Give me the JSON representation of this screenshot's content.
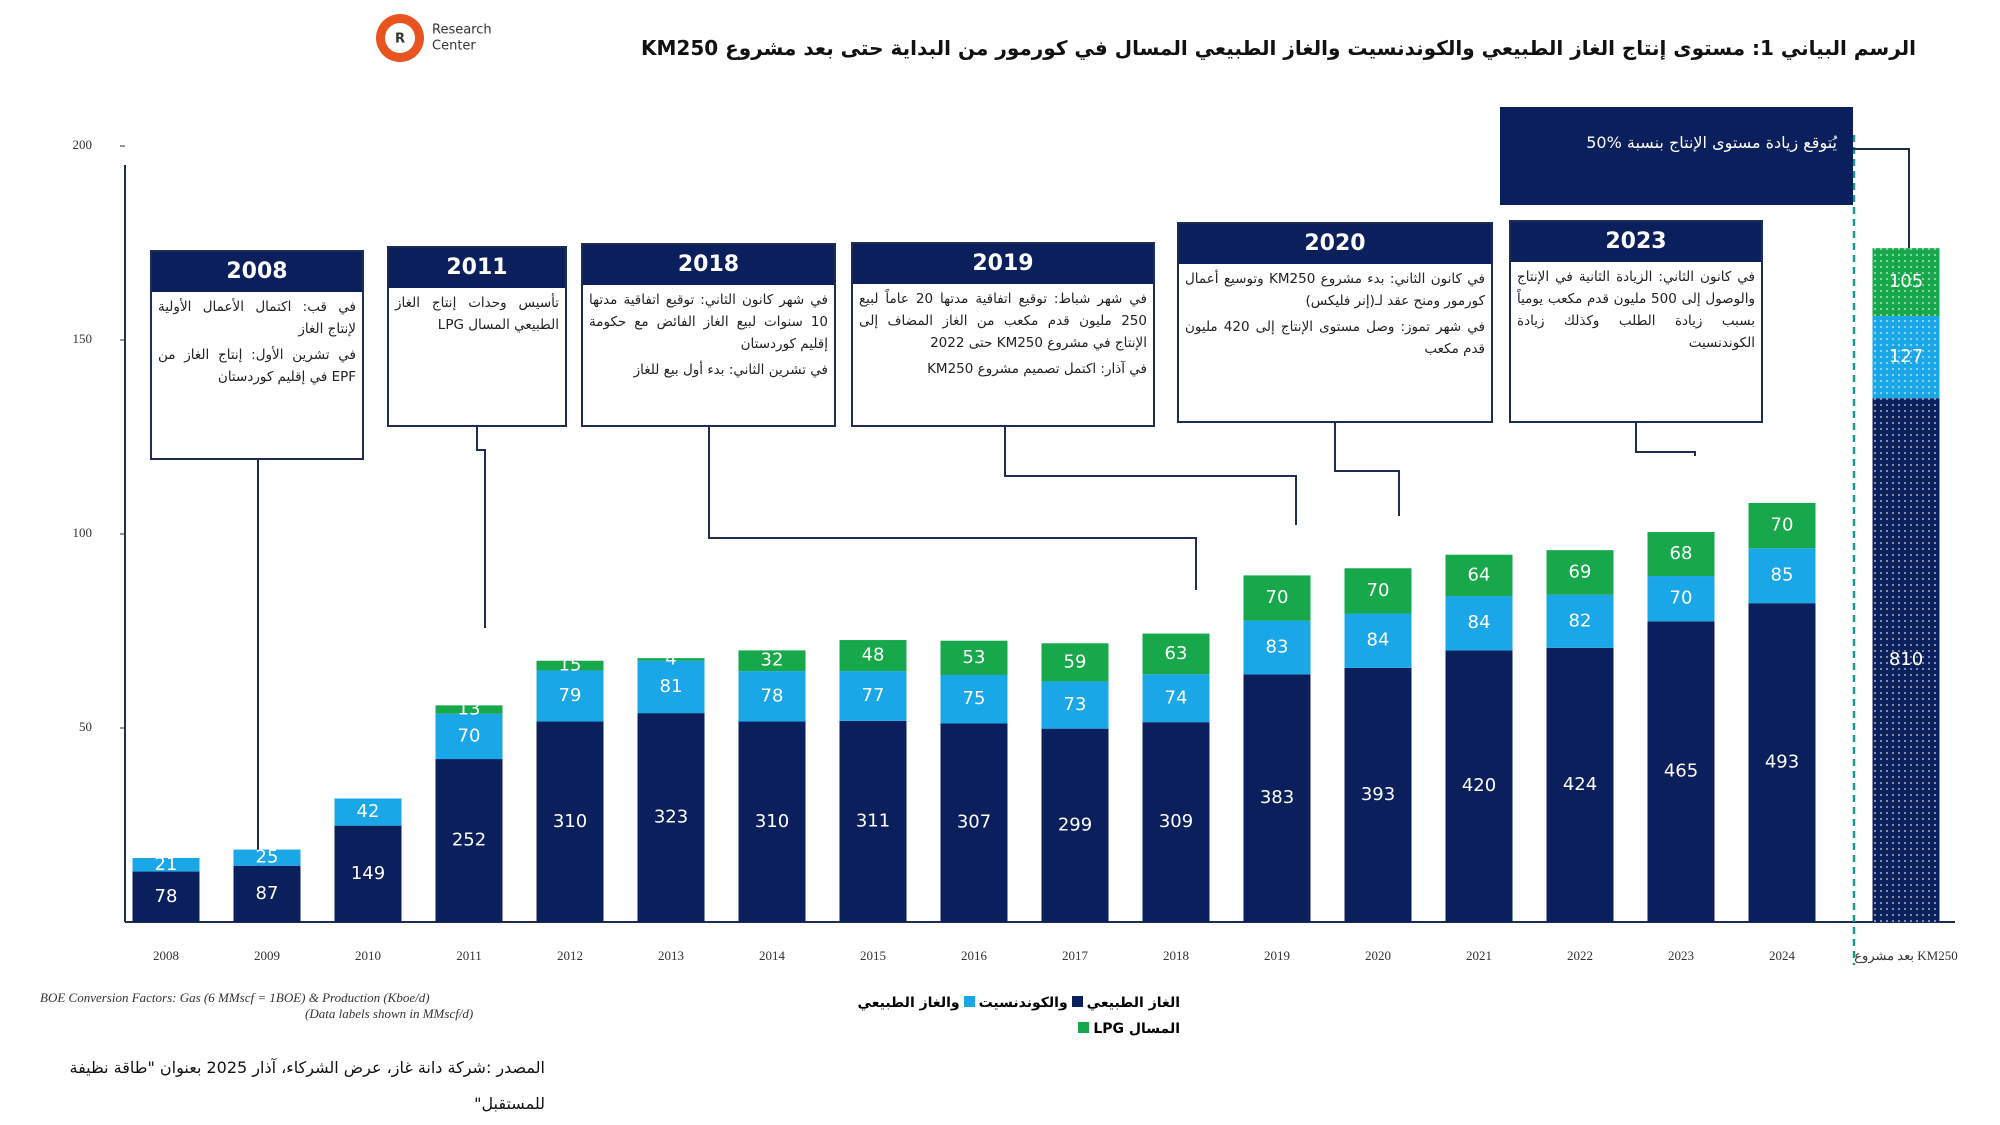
{
  "header": {
    "title": "الرسم البياني 1: مستوى إنتاج الغاز الطبيعي والكوندنسيت والغاز الطبيعي المسال في كورمور من البداية حتى بعد مشروع KM250",
    "logo_line1": "Research",
    "logo_line2": "Center"
  },
  "chart_data": {
    "type": "stacked_bar",
    "categories": [
      "2008",
      "2009",
      "2010",
      "2011",
      "2012",
      "2013",
      "2014",
      "2015",
      "2016",
      "2017",
      "2018",
      "2019",
      "2020",
      "2021",
      "2022",
      "2023",
      "2024",
      "بعد مشروع KM250"
    ],
    "series": [
      {
        "name": "الغاز الطبيعي",
        "color": "#0b1f5c",
        "axis": "y2",
        "values": [
          78,
          87,
          149,
          252,
          310,
          323,
          310,
          311,
          307,
          299,
          309,
          383,
          393,
          420,
          424,
          465,
          493,
          810
        ]
      },
      {
        "name": "والكوندنسيت",
        "color": "#1aa7e8",
        "axis": "y2",
        "values": [
          21,
          25,
          42,
          70,
          79,
          81,
          78,
          77,
          75,
          73,
          74,
          83,
          84,
          84,
          82,
          70,
          85,
          127
        ]
      },
      {
        "name": "والغاز الطبيعي المسال LPG",
        "color": "#16a84a",
        "axis": "y2",
        "values": [
          null,
          null,
          null,
          13,
          15,
          4,
          32,
          48,
          53,
          59,
          63,
          70,
          70,
          64,
          69,
          68,
          70,
          105
        ]
      }
    ],
    "ylim": [
      0,
      200
    ],
    "yticks": [
      50,
      100,
      150,
      200
    ],
    "y2lim": [
      0,
      1200
    ],
    "note_line1": "BOE Conversion Factors:   Gas (6 MMscf = 1BOE) & Production (Kboe/d)",
    "note_line2": "(Data labels shown in MMscf/d)",
    "source": "المصدر :شركة دانة غاز، عرض الشركاء، آذار 2025 بعنوان \"طاقة نظيفة للمستقبل\"",
    "annotations": [
      {
        "title": "2008",
        "lines": [
          "في قب: اكتمال الأعمال الأولية لإنتاج الغاز",
          "في تشرين الأول: إنتاج الغاز من EPF في إقليم كوردستان"
        ]
      },
      {
        "title": "2011",
        "lines": [
          "تأسيس وحدات إنتاج الغاز الطبيعي المسال LPG"
        ]
      },
      {
        "title": "2018",
        "lines": [
          "في شهر كانون الثاني: توقيع اتفاقية مدتها 10 سنوات لبيع الغاز الفائض مع حكومة إقليم كوردستان",
          "في تشرين الثاني: بدء أول بيع للغاز"
        ]
      },
      {
        "title": "2019",
        "lines": [
          "في شهر شباط: توقيع اتفاقية مدتها 20 عاماً لبيع 250 مليون قدم مكعب من الغاز المضاف إلى الإنتاج في مشروع KM250 حتى 2022",
          "في آذار: اكتمل تصميم مشروع KM250"
        ]
      },
      {
        "title": "2020",
        "lines": [
          "في كانون الثاني: بدء مشروع KM250 وتوسيع أعمال كورمور ومنح عقد لـ(إنر فليكس)",
          "في شهر تموز: وصل مستوى الإنتاج إلى 420 مليون قدم مكعب"
        ]
      },
      {
        "title": "2023",
        "lines": [
          "في كانون الثاني: الزيادة الثانية في الإنتاج والوصول إلى 500 مليون قدم مكعب يومياً بسبب زيادة الطلب وكذلك زيادة الكوندنسيت"
        ]
      }
    ],
    "callout": "يُتوقع زيادة مستوى الإنتاج بنسبة %50"
  }
}
